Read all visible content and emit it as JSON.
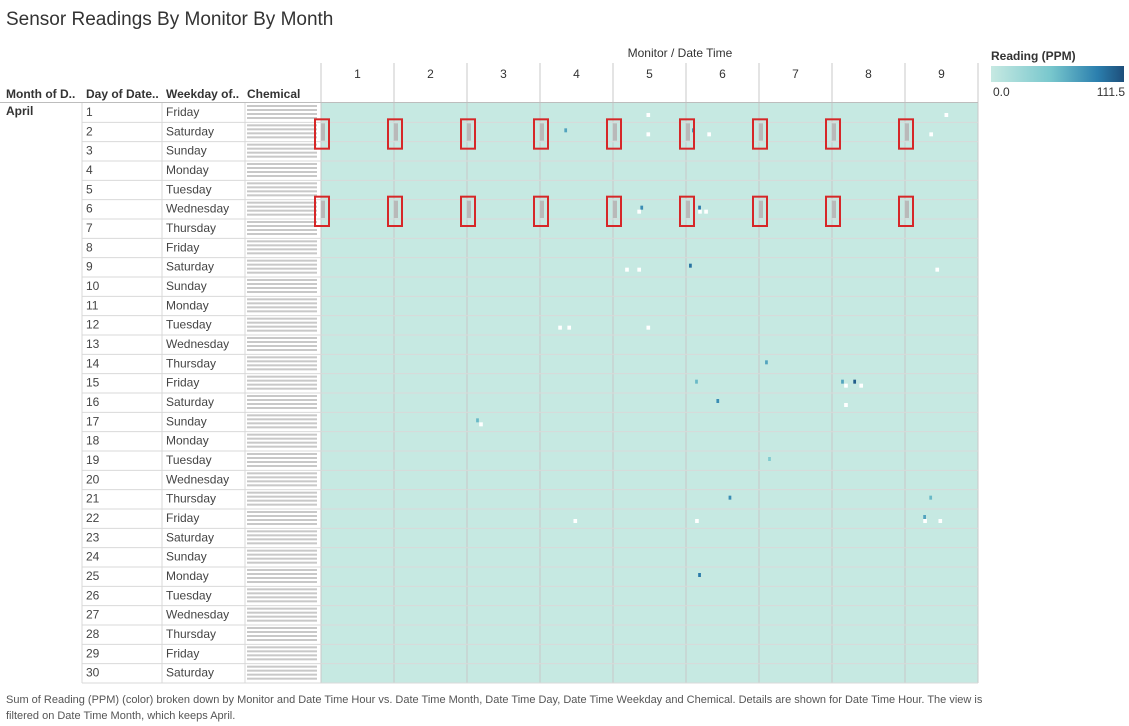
{
  "title": "Sensor Readings By Monitor By  Month",
  "column_header": "Monitor  /  Date Time",
  "row_headers": {
    "month": "Month of D..",
    "day": "Day of Date..",
    "weekday": "Weekday of..",
    "chemical": "Chemical"
  },
  "month_label": "April",
  "legend": {
    "title": "Reading (PPM)",
    "min": "0.0",
    "max": "111.5",
    "colors": [
      "#c6e9e2",
      "#78c7cd",
      "#2b7fae",
      "#1d4e7a"
    ]
  },
  "footer": "Sum of Reading (PPM) (color) broken down by Monitor and Date Time Hour vs. Date Time Month, Date Time Day, Date Time Weekday and Chemical.  Details are shown for Date Time Hour. The view is filtered on Date Time Month, which keeps April.",
  "chemical_label_stack": "AGOC-3A / Appluimonia / Chlorodinine / Methylosmolene",
  "chart_data": {
    "type": "heatmap",
    "title": "Sensor Readings By Monitor By  Month",
    "x": {
      "label": "Monitor  /  Date Time",
      "monitors": [
        1,
        2,
        3,
        4,
        5,
        6,
        7,
        8,
        9
      ]
    },
    "rows": [
      {
        "day": 1,
        "weekday": "Friday"
      },
      {
        "day": 2,
        "weekday": "Saturday"
      },
      {
        "day": 3,
        "weekday": "Sunday"
      },
      {
        "day": 4,
        "weekday": "Monday"
      },
      {
        "day": 5,
        "weekday": "Tuesday"
      },
      {
        "day": 6,
        "weekday": "Wednesday"
      },
      {
        "day": 7,
        "weekday": "Thursday"
      },
      {
        "day": 8,
        "weekday": "Friday"
      },
      {
        "day": 9,
        "weekday": "Saturday"
      },
      {
        "day": 10,
        "weekday": "Sunday"
      },
      {
        "day": 11,
        "weekday": "Monday"
      },
      {
        "day": 12,
        "weekday": "Tuesday"
      },
      {
        "day": 13,
        "weekday": "Wednesday"
      },
      {
        "day": 14,
        "weekday": "Thursday"
      },
      {
        "day": 15,
        "weekday": "Friday"
      },
      {
        "day": 16,
        "weekday": "Saturday"
      },
      {
        "day": 17,
        "weekday": "Sunday"
      },
      {
        "day": 18,
        "weekday": "Monday"
      },
      {
        "day": 19,
        "weekday": "Tuesday"
      },
      {
        "day": 20,
        "weekday": "Wednesday"
      },
      {
        "day": 21,
        "weekday": "Thursday"
      },
      {
        "day": 22,
        "weekday": "Friday"
      },
      {
        "day": 23,
        "weekday": "Saturday"
      },
      {
        "day": 24,
        "weekday": "Sunday"
      },
      {
        "day": 25,
        "weekday": "Monday"
      },
      {
        "day": 26,
        "weekday": "Tuesday"
      },
      {
        "day": 27,
        "weekday": "Wednesday"
      },
      {
        "day": 28,
        "weekday": "Thursday"
      },
      {
        "day": 29,
        "weekday": "Friday"
      },
      {
        "day": 30,
        "weekday": "Saturday"
      }
    ],
    "color_range": [
      0.0,
      111.5
    ],
    "highlighted_days": [
      2,
      6
    ],
    "highlighted_monitors": [
      1,
      2,
      3,
      4,
      5,
      6,
      7,
      8,
      9
    ],
    "notable_readings": [
      {
        "monitor": 4,
        "day": 2,
        "hour": 8,
        "level": 0.5
      },
      {
        "monitor": 6,
        "day": 2,
        "hour": 2,
        "level": 0.6
      },
      {
        "monitor": 6,
        "day": 6,
        "hour": 4,
        "level": 0.7
      },
      {
        "monitor": 5,
        "day": 6,
        "hour": 9,
        "level": 0.6
      },
      {
        "monitor": 6,
        "day": 9,
        "hour": 1,
        "level": 0.75
      },
      {
        "monitor": 6,
        "day": 15,
        "hour": 3,
        "level": 0.4
      },
      {
        "monitor": 7,
        "day": 14,
        "hour": 2,
        "level": 0.5
      },
      {
        "monitor": 8,
        "day": 15,
        "hour": 7,
        "level": 0.9
      },
      {
        "monitor": 8,
        "day": 15,
        "hour": 3,
        "level": 0.5
      },
      {
        "monitor": 6,
        "day": 16,
        "hour": 10,
        "level": 0.6
      },
      {
        "monitor": 3,
        "day": 17,
        "hour": 3,
        "level": 0.4
      },
      {
        "monitor": 7,
        "day": 19,
        "hour": 3,
        "level": 0.3
      },
      {
        "monitor": 6,
        "day": 21,
        "hour": 14,
        "level": 0.6
      },
      {
        "monitor": 9,
        "day": 21,
        "hour": 8,
        "level": 0.4
      },
      {
        "monitor": 9,
        "day": 22,
        "hour": 6,
        "level": 0.5
      },
      {
        "monitor": 6,
        "day": 25,
        "hour": 4,
        "level": 0.7
      }
    ],
    "saturated_readings": [
      {
        "monitor": 5,
        "day": 1,
        "hour": 11
      },
      {
        "monitor": 9,
        "day": 1,
        "hour": 13
      },
      {
        "monitor": 5,
        "day": 2,
        "hour": 11
      },
      {
        "monitor": 6,
        "day": 2,
        "hour": 7
      },
      {
        "monitor": 9,
        "day": 2,
        "hour": 8
      },
      {
        "monitor": 5,
        "day": 6,
        "hour": 8
      },
      {
        "monitor": 6,
        "day": 6,
        "hour": 4
      },
      {
        "monitor": 6,
        "day": 6,
        "hour": 6
      },
      {
        "monitor": 5,
        "day": 9,
        "hour": 4
      },
      {
        "monitor": 5,
        "day": 9,
        "hour": 8
      },
      {
        "monitor": 9,
        "day": 9,
        "hour": 10
      },
      {
        "monitor": 4,
        "day": 12,
        "hour": 6
      },
      {
        "monitor": 4,
        "day": 12,
        "hour": 9
      },
      {
        "monitor": 5,
        "day": 12,
        "hour": 11
      },
      {
        "monitor": 8,
        "day": 15,
        "hour": 4
      },
      {
        "monitor": 8,
        "day": 15,
        "hour": 9
      },
      {
        "monitor": 8,
        "day": 16,
        "hour": 4
      },
      {
        "monitor": 3,
        "day": 17,
        "hour": 4
      },
      {
        "monitor": 4,
        "day": 22,
        "hour": 11
      },
      {
        "monitor": 6,
        "day": 22,
        "hour": 3
      },
      {
        "monitor": 9,
        "day": 22,
        "hour": 6
      },
      {
        "monitor": 9,
        "day": 22,
        "hour": 11
      }
    ]
  }
}
